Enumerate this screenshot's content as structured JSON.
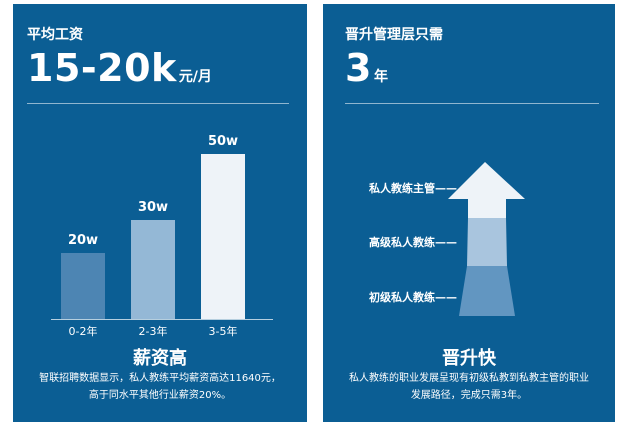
{
  "left": {
    "header_label": "平均工资",
    "big_value": "15-20k",
    "big_unit": "元/月",
    "chart_data": {
      "type": "bar",
      "categories": [
        "0-2年",
        "2-3年",
        "3-5年"
      ],
      "values": [
        20,
        30,
        50
      ],
      "value_labels": [
        "20w",
        "30w",
        "50w"
      ],
      "title": "",
      "xlabel": "",
      "ylabel": "",
      "ylim": [
        0,
        50
      ],
      "colors": [
        "#4d85b3",
        "#94b8d6",
        "#eef3f8"
      ]
    },
    "footer_title": "薪资高",
    "footer_line1": "智联招聘数据显示，私人教练平均薪资高达11640元，",
    "footer_line2": "高于同水平其他行业薪资20%。"
  },
  "right": {
    "header_label": "晋升管理层只需",
    "big_value": "3",
    "big_unit": "年",
    "levels": [
      {
        "label": "私人教练主管——"
      },
      {
        "label": "高级私人教练——"
      },
      {
        "label": "初级私人教练——"
      }
    ],
    "arrow_colors": [
      "#eef3f8",
      "#a9c5de",
      "#6296c1"
    ],
    "footer_title": "晋升快",
    "footer_line1": "私人教练的职业发展呈现有初级私教到私教主管的职业",
    "footer_line2": "发展路径，完成只需3年。"
  }
}
